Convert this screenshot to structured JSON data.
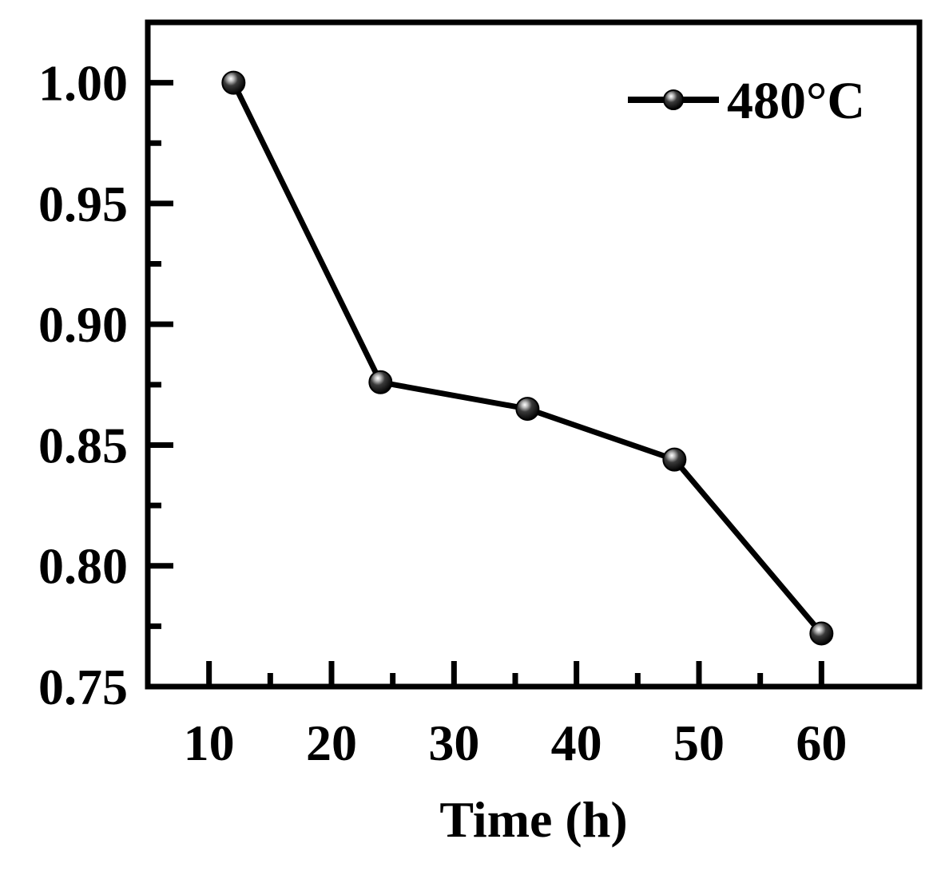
{
  "chart_data": {
    "type": "line",
    "title": "",
    "xlabel": "Time (h)",
    "ylabel": "",
    "xlim": [
      5,
      68
    ],
    "ylim": [
      0.75,
      1.025
    ],
    "xticks": [
      10,
      20,
      30,
      40,
      50,
      60
    ],
    "xticks_minor": [
      15,
      25,
      35,
      45,
      55
    ],
    "yticks": [
      0.75,
      0.8,
      0.85,
      0.9,
      0.95,
      1.0
    ],
    "yticks_minor": [
      0.775,
      0.825,
      0.875,
      0.925,
      0.975
    ],
    "xtick_labels": [
      "10",
      "20",
      "30",
      "40",
      "50",
      "60"
    ],
    "ytick_labels": [
      "0.75",
      "0.80",
      "0.85",
      "0.90",
      "0.95",
      "1.00"
    ],
    "series": [
      {
        "name": "480°C",
        "x": [
          12,
          24,
          36,
          48,
          60
        ],
        "y": [
          1.0,
          0.876,
          0.865,
          0.844,
          0.772
        ],
        "color": "#000000",
        "marker": "sphere"
      }
    ],
    "legend": {
      "position": "top-right",
      "entries": [
        "480°C"
      ]
    },
    "grid": false
  }
}
